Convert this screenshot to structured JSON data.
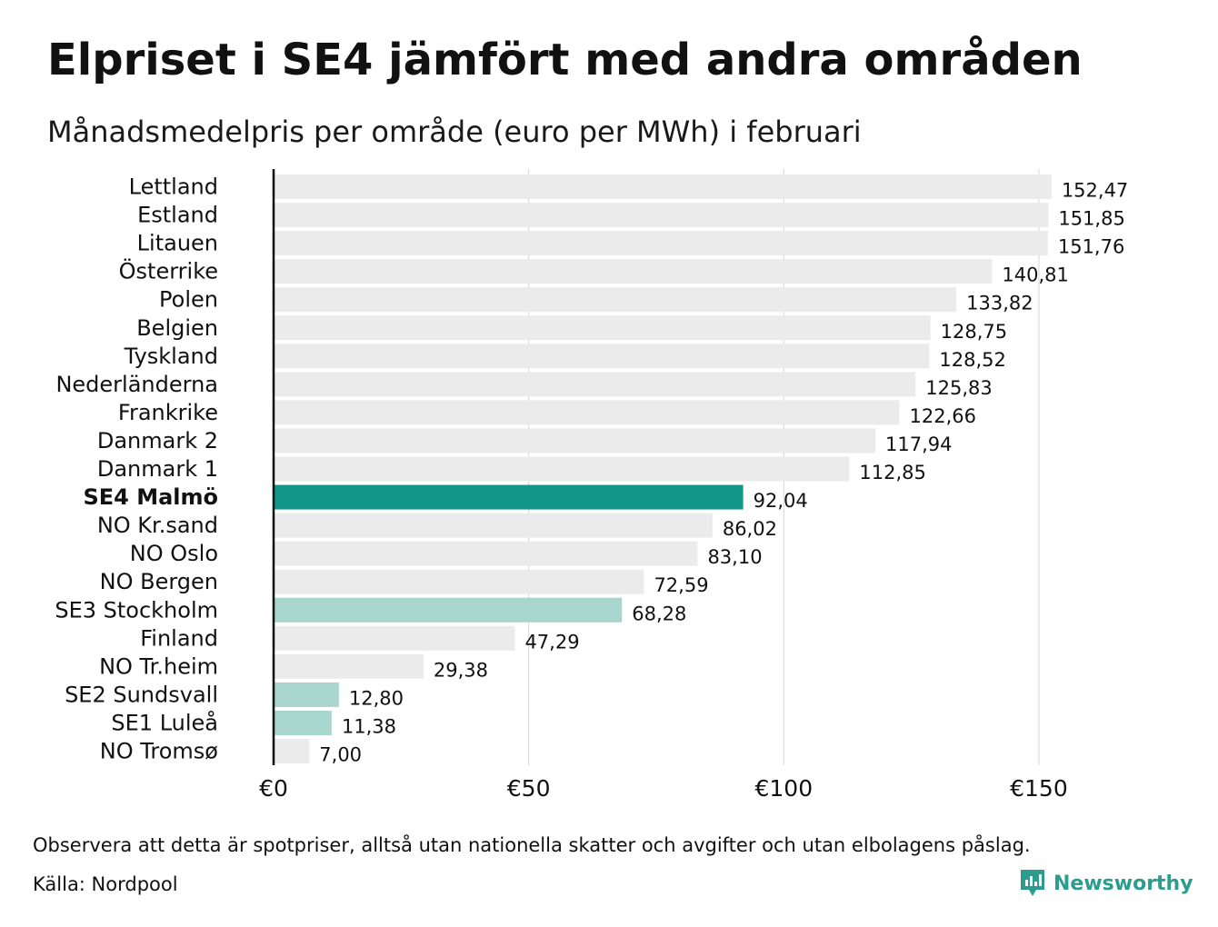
{
  "title": "Elpriset i SE4 jämfört med andra områden",
  "subtitle": "Månadsmedelpris per område (euro per MWh) i februari",
  "note": "Observera att detta är spotpriser, alltså utan nationella skatter och avgifter och utan elbolagens påslag.",
  "source": "Källa: Nordpool",
  "brand": {
    "name": "Newsworthy",
    "icon": "bar-chart-speech-bubble-icon",
    "color": "#2a9d8f"
  },
  "colors": {
    "default_bar": "#ebebeb",
    "highlight_bar": "#13968a",
    "light_highlight_bar": "#a8d5cc",
    "gridline": "#d6d6d6",
    "axis": "#111111"
  },
  "chart_data": {
    "type": "bar",
    "orientation": "horizontal",
    "xlim": [
      0,
      160
    ],
    "x_ticks": [
      0,
      50,
      100,
      150
    ],
    "x_tick_labels": [
      "€0",
      "€50",
      "€100",
      "€150"
    ],
    "grid": true,
    "categories": [
      "Lettland",
      "Estland",
      "Litauen",
      "Österrike",
      "Polen",
      "Belgien",
      "Tyskland",
      "Nederländerna",
      "Frankrike",
      "Danmark 2",
      "Danmark 1",
      "SE4 Malmö",
      "NO Kr.sand",
      "NO Oslo",
      "NO Bergen",
      "SE3 Stockholm",
      "Finland",
      "NO Tr.heim",
      "SE2 Sundsvall",
      "SE1 Luleå",
      "NO Tromsø"
    ],
    "values": [
      152.47,
      151.85,
      151.76,
      140.81,
      133.82,
      128.75,
      128.52,
      125.83,
      122.66,
      117.94,
      112.85,
      92.04,
      86.02,
      83.1,
      72.59,
      68.28,
      47.29,
      29.38,
      12.8,
      11.38,
      7.0
    ],
    "value_labels": [
      "152,47",
      "151,85",
      "151,76",
      "140,81",
      "133,82",
      "128,75",
      "128,52",
      "125,83",
      "122,66",
      "117,94",
      "112,85",
      "92,04",
      "86,02",
      "83,10",
      "72,59",
      "68,28",
      "47,29",
      "29,38",
      "12,80",
      "11,38",
      "7,00"
    ],
    "highlight": [
      "default",
      "default",
      "default",
      "default",
      "default",
      "default",
      "default",
      "default",
      "default",
      "default",
      "default",
      "primary",
      "default",
      "default",
      "default",
      "secondary",
      "default",
      "default",
      "secondary",
      "secondary",
      "default"
    ]
  }
}
